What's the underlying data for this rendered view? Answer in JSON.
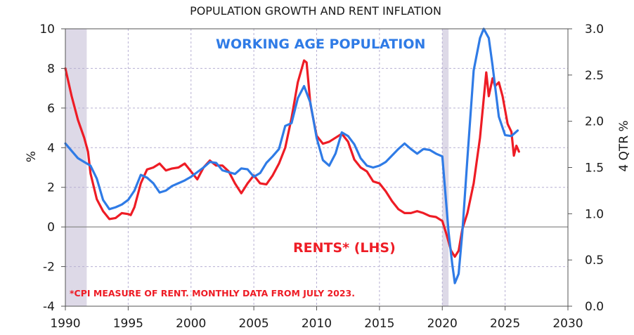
{
  "chart_data": {
    "type": "line",
    "title": "POPULATION GROWTH AND RENT INFLATION",
    "ylabel_left": "%",
    "ylabel_right": "4 QTR %",
    "xlim": [
      1990,
      2030
    ],
    "ylim_left": [
      -4,
      10
    ],
    "ylim_right": [
      0.0,
      3.0
    ],
    "x_ticks": [
      "1990",
      "1995",
      "2000",
      "2005",
      "2010",
      "2015",
      "2020",
      "2025",
      "2030"
    ],
    "y_ticks_left": [
      "10",
      "8",
      "6",
      "4",
      "2",
      "0",
      "-2",
      "-4"
    ],
    "y_ticks_right": [
      "3.0",
      "2.5",
      "2.0",
      "1.5",
      "1.0",
      "0.5",
      "0.0"
    ],
    "grid": true,
    "recession_bands": [
      [
        1990.0,
        1991.7
      ],
      [
        2020.0,
        2020.5
      ]
    ],
    "annotations": {
      "population": "WORKING AGE POPULATION",
      "rents": "RENTS* (LHS)",
      "footnote": "*CPI MEASURE OF RENT.  MONTHLY DATA FROM JULY 2023."
    },
    "colors": {
      "rents": "#ee1c25",
      "population": "#2f7be6",
      "band": "#ddd9e7",
      "grid": "#b7b0d2"
    },
    "series": [
      {
        "key": "rents",
        "axis": "left",
        "points": [
          [
            1990,
            8.0
          ],
          [
            1990.5,
            6.6
          ],
          [
            1991,
            5.4
          ],
          [
            1991.5,
            4.5
          ],
          [
            1991.8,
            3.8
          ],
          [
            1992,
            2.7
          ],
          [
            1992.5,
            1.4
          ],
          [
            1993,
            0.8
          ],
          [
            1993.5,
            0.4
          ],
          [
            1994,
            0.45
          ],
          [
            1994.5,
            0.7
          ],
          [
            1995,
            0.65
          ],
          [
            1995.2,
            0.6
          ],
          [
            1995.5,
            1.0
          ],
          [
            1996,
            2.2
          ],
          [
            1996.5,
            2.9
          ],
          [
            1997,
            3.0
          ],
          [
            1997.5,
            3.2
          ],
          [
            1998,
            2.85
          ],
          [
            1998.5,
            2.95
          ],
          [
            1999,
            3.0
          ],
          [
            1999.5,
            3.2
          ],
          [
            2000,
            2.8
          ],
          [
            2000.5,
            2.4
          ],
          [
            2001,
            3.0
          ],
          [
            2001.5,
            3.35
          ],
          [
            2002,
            3.1
          ],
          [
            2002.5,
            3.1
          ],
          [
            2003,
            2.8
          ],
          [
            2003.5,
            2.2
          ],
          [
            2004,
            1.7
          ],
          [
            2004.5,
            2.2
          ],
          [
            2005,
            2.6
          ],
          [
            2005.5,
            2.2
          ],
          [
            2006,
            2.15
          ],
          [
            2006.5,
            2.6
          ],
          [
            2007,
            3.2
          ],
          [
            2007.5,
            4.0
          ],
          [
            2008,
            5.5
          ],
          [
            2008.5,
            7.3
          ],
          [
            2009,
            8.4
          ],
          [
            2009.2,
            8.3
          ],
          [
            2009.5,
            6.2
          ],
          [
            2010,
            4.6
          ],
          [
            2010.5,
            4.2
          ],
          [
            2011,
            4.3
          ],
          [
            2011.5,
            4.5
          ],
          [
            2012,
            4.7
          ],
          [
            2012.5,
            4.3
          ],
          [
            2013,
            3.4
          ],
          [
            2013.5,
            3.0
          ],
          [
            2014,
            2.8
          ],
          [
            2014.5,
            2.3
          ],
          [
            2015,
            2.2
          ],
          [
            2015.5,
            1.8
          ],
          [
            2016,
            1.3
          ],
          [
            2016.5,
            0.9
          ],
          [
            2017,
            0.7
          ],
          [
            2017.5,
            0.7
          ],
          [
            2018,
            0.8
          ],
          [
            2018.5,
            0.7
          ],
          [
            2019,
            0.55
          ],
          [
            2019.5,
            0.5
          ],
          [
            2020,
            0.3
          ],
          [
            2020.3,
            -0.3
          ],
          [
            2020.7,
            -1.2
          ],
          [
            2021,
            -1.5
          ],
          [
            2021.3,
            -1.2
          ],
          [
            2021.6,
            -0.1
          ],
          [
            2022,
            0.7
          ],
          [
            2022.5,
            2.2
          ],
          [
            2023,
            4.5
          ],
          [
            2023.5,
            7.8
          ],
          [
            2023.7,
            6.6
          ],
          [
            2024,
            7.5
          ],
          [
            2024.2,
            7.1
          ],
          [
            2024.5,
            7.3
          ],
          [
            2024.8,
            6.6
          ],
          [
            2025.2,
            5.2
          ],
          [
            2025.5,
            4.8
          ],
          [
            2025.7,
            3.6
          ],
          [
            2025.9,
            4.1
          ],
          [
            2026.1,
            3.8
          ]
        ]
      },
      {
        "key": "population",
        "axis": "right",
        "points": [
          [
            1990,
            1.76
          ],
          [
            1990.5,
            1.68
          ],
          [
            1991,
            1.6
          ],
          [
            1991.5,
            1.56
          ],
          [
            1992,
            1.52
          ],
          [
            1992.5,
            1.38
          ],
          [
            1993,
            1.15
          ],
          [
            1993.5,
            1.05
          ],
          [
            1994,
            1.07
          ],
          [
            1994.5,
            1.1
          ],
          [
            1995,
            1.15
          ],
          [
            1995.5,
            1.25
          ],
          [
            1996,
            1.42
          ],
          [
            1996.5,
            1.39
          ],
          [
            1997,
            1.33
          ],
          [
            1997.5,
            1.23
          ],
          [
            1998,
            1.25
          ],
          [
            1998.5,
            1.3
          ],
          [
            1999,
            1.33
          ],
          [
            1999.5,
            1.36
          ],
          [
            2000,
            1.4
          ],
          [
            2000.5,
            1.45
          ],
          [
            2001,
            1.5
          ],
          [
            2001.5,
            1.56
          ],
          [
            2002,
            1.55
          ],
          [
            2002.5,
            1.47
          ],
          [
            2003,
            1.45
          ],
          [
            2003.5,
            1.43
          ],
          [
            2004,
            1.49
          ],
          [
            2004.5,
            1.48
          ],
          [
            2005,
            1.4
          ],
          [
            2005.5,
            1.44
          ],
          [
            2006,
            1.55
          ],
          [
            2006.5,
            1.62
          ],
          [
            2007,
            1.7
          ],
          [
            2007.5,
            1.95
          ],
          [
            2008,
            1.98
          ],
          [
            2008.5,
            2.25
          ],
          [
            2009,
            2.38
          ],
          [
            2009.5,
            2.2
          ],
          [
            2010,
            1.82
          ],
          [
            2010.5,
            1.58
          ],
          [
            2011,
            1.52
          ],
          [
            2011.5,
            1.65
          ],
          [
            2012,
            1.88
          ],
          [
            2012.5,
            1.84
          ],
          [
            2013,
            1.75
          ],
          [
            2013.5,
            1.6
          ],
          [
            2014,
            1.52
          ],
          [
            2014.5,
            1.5
          ],
          [
            2015,
            1.52
          ],
          [
            2015.5,
            1.56
          ],
          [
            2016,
            1.63
          ],
          [
            2016.5,
            1.7
          ],
          [
            2017,
            1.76
          ],
          [
            2017.5,
            1.7
          ],
          [
            2018,
            1.65
          ],
          [
            2018.5,
            1.7
          ],
          [
            2019,
            1.69
          ],
          [
            2019.5,
            1.65
          ],
          [
            2020,
            1.62
          ],
          [
            2020.2,
            1.3
          ],
          [
            2020.5,
            0.8
          ],
          [
            2020.8,
            0.45
          ],
          [
            2021,
            0.25
          ],
          [
            2021.3,
            0.35
          ],
          [
            2021.6,
            0.8
          ],
          [
            2022,
            1.6
          ],
          [
            2022.5,
            2.55
          ],
          [
            2023,
            2.9
          ],
          [
            2023.3,
            3.0
          ],
          [
            2023.7,
            2.9
          ],
          [
            2024,
            2.6
          ],
          [
            2024.5,
            2.05
          ],
          [
            2025,
            1.85
          ],
          [
            2025.5,
            1.84
          ],
          [
            2026,
            1.9
          ]
        ]
      }
    ]
  }
}
